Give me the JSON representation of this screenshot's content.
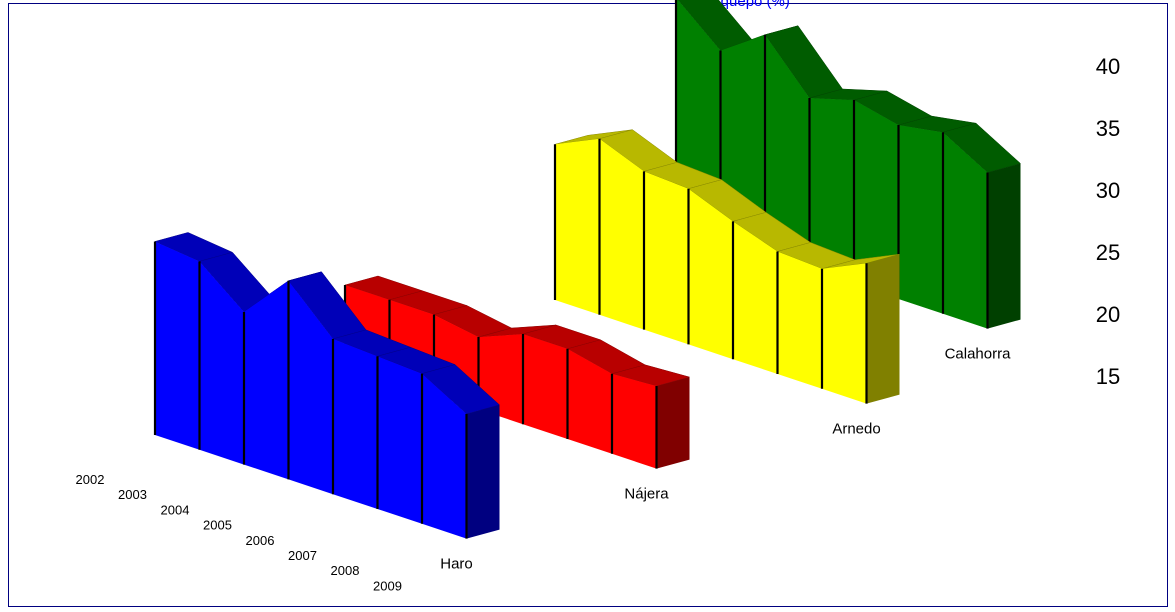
{
  "page": {
    "title_fragment": "porquepo (%)"
  },
  "chart_data": {
    "type": "area",
    "title": "",
    "categories": [
      "2002",
      "2003",
      "2004",
      "2005",
      "2006",
      "2007",
      "2008",
      "2009"
    ],
    "ylim": [
      15,
      40
    ],
    "yticks": [
      "15",
      "20",
      "25",
      "30",
      "35",
      "40"
    ],
    "grid": false,
    "series": [
      {
        "name": "Haro",
        "color": "#0000ff",
        "values": [
          25.5,
          24.5,
          17.5,
          26.5,
          18.0,
          17.5,
          17.0,
          12.0
        ]
      },
      {
        "name": "Nájera",
        "color": "#ff0000",
        "values": [
          15.0,
          15.0,
          15.0,
          13.5,
          17.0,
          17.0,
          15.0,
          15.5
        ]
      },
      {
        "name": "Arnedo",
        "color": "#ffff00",
        "values": [
          22.0,
          26.0,
          22.5,
          22.0,
          18.5,
          15.5,
          15.0,
          19.0
        ]
      },
      {
        "name": "Calahorra",
        "color": "#008000",
        "values": [
          40.0,
          32.5,
          38.5,
          29.0,
          31.5,
          29.5,
          31.0,
          26.0
        ]
      }
    ]
  }
}
